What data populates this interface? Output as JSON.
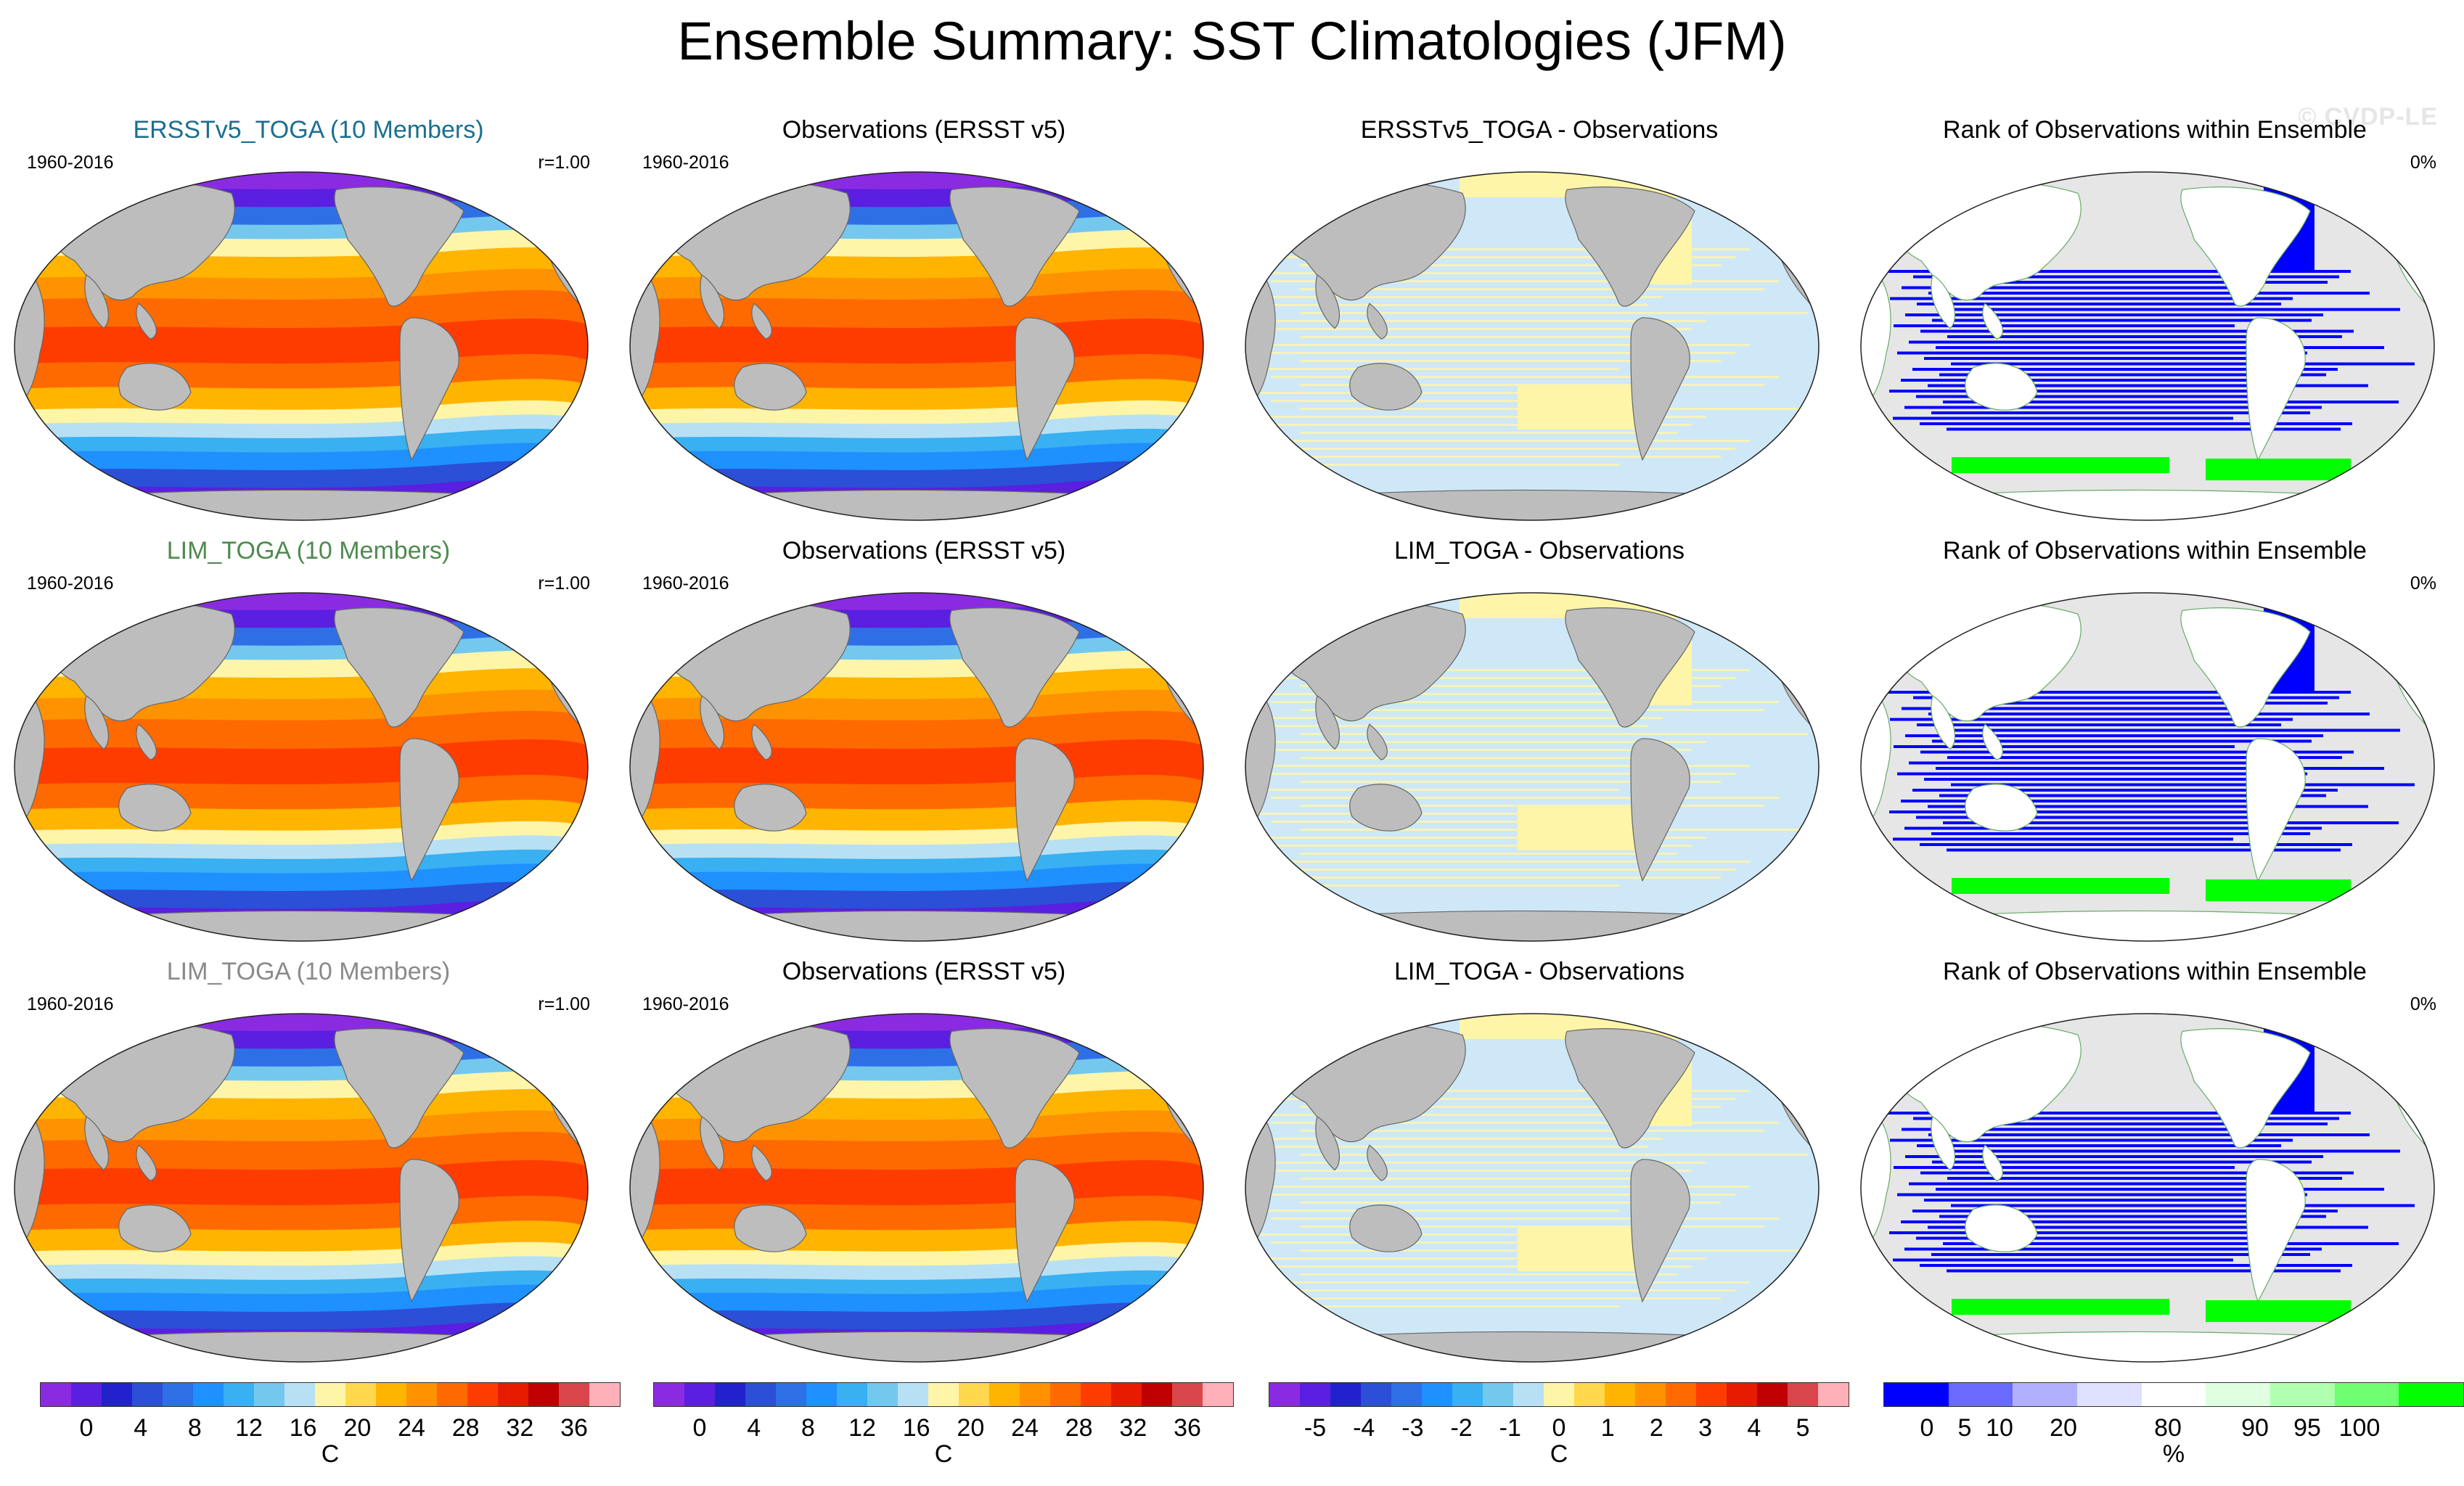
{
  "figure": {
    "title": "Ensemble Summary: SST Climatologies (JFM)",
    "watermark": "© CVDP-LE"
  },
  "rows": [
    {
      "model": {
        "title": "ERSSTv5_TOGA (10 Members)",
        "title_color": "#1b6f8f",
        "period": "1960-2016",
        "corr": "r=1.00"
      },
      "obs": {
        "title": "Observations (ERSST v5)",
        "period": "1960-2016"
      },
      "diff": {
        "title": "ERSSTv5_TOGA - Observations"
      },
      "rank": {
        "title": "Rank of Observations within Ensemble",
        "pct": "0%"
      }
    },
    {
      "model": {
        "title": "LIM_TOGA (10 Members)",
        "title_color": "#4f8a4f",
        "period": "1960-2016",
        "corr": "r=1.00"
      },
      "obs": {
        "title": "Observations (ERSST v5)",
        "period": "1960-2016"
      },
      "diff": {
        "title": "LIM_TOGA - Observations"
      },
      "rank": {
        "title": "Rank of Observations within Ensemble",
        "pct": "0%"
      }
    },
    {
      "model": {
        "title": "LIM_TOGA (10 Members)",
        "title_color": "#8a8a8a",
        "period": "1960-2016",
        "corr": "r=1.00"
      },
      "obs": {
        "title": "Observations (ERSST v5)",
        "period": "1960-2016"
      },
      "diff": {
        "title": "LIM_TOGA - Observations"
      },
      "rank": {
        "title": "Rank of Observations within Ensemble",
        "pct": "0%"
      }
    }
  ],
  "colorbars": {
    "sst": {
      "unit": "C",
      "ticks": [
        "0",
        "4",
        "8",
        "12",
        "16",
        "20",
        "24",
        "28",
        "32",
        "36"
      ],
      "colors": [
        "#8a2be2",
        "#5a1fe0",
        "#2222cc",
        "#2b4fd6",
        "#2f6fe6",
        "#1e90ff",
        "#38b0f2",
        "#74c8ee",
        "#b8e0f4",
        "#fff5a8",
        "#ffd84d",
        "#ffb400",
        "#ff9200",
        "#ff6a00",
        "#ff3c00",
        "#e61b00",
        "#c00000",
        "#d8464c",
        "#ffb0b8"
      ]
    },
    "diff": {
      "unit": "C",
      "ticks": [
        "-5",
        "-4",
        "-3",
        "-2",
        "-1",
        "0",
        "1",
        "2",
        "3",
        "4",
        "5"
      ],
      "colors": [
        "#8a2be2",
        "#5a1fe0",
        "#2222cc",
        "#2b4fd6",
        "#2f6fe6",
        "#1e90ff",
        "#38b0f2",
        "#74c8ee",
        "#b8e0f4",
        "#fff5a8",
        "#ffd84d",
        "#ffb400",
        "#ff9200",
        "#ff6a00",
        "#ff3c00",
        "#e61b00",
        "#c00000",
        "#d8464c",
        "#ffb0b8"
      ]
    },
    "rank": {
      "unit": "%",
      "ticks": [
        "0",
        "5",
        "10",
        "20",
        "80",
        "90",
        "95",
        "100"
      ],
      "colors": [
        "#0000ff",
        "#6a6aff",
        "#b0b0ff",
        "#e0e0ff",
        "#ffffff",
        "#e0ffe0",
        "#b0ffb0",
        "#70ff70",
        "#00ff00"
      ]
    }
  }
}
